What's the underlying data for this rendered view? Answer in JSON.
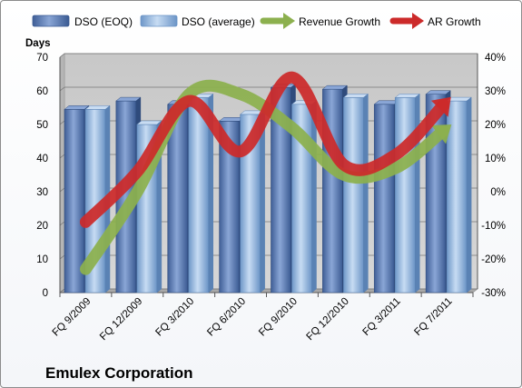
{
  "chart_data": {
    "type": "bar",
    "title": "Emulex Corporation",
    "ylabel": "Days",
    "ylim": [
      0,
      70
    ],
    "y2lim": [
      -0.3,
      0.4
    ],
    "yticks": [
      "0",
      "10",
      "20",
      "30",
      "40",
      "50",
      "60",
      "70"
    ],
    "y2ticks": [
      "-30%",
      "-20%",
      "-10%",
      "0%",
      "10%",
      "20%",
      "30%",
      "40%"
    ],
    "categories": [
      "FQ 9/2009",
      "FQ 12/2009",
      "FQ 3/2010",
      "FQ 6/2010",
      "FQ 9/2010",
      "FQ 12/2010",
      "FQ 3/2011",
      "FQ 7/2011"
    ],
    "grid": true,
    "legend_position": "top",
    "series": [
      {
        "name": "DSO (EOQ)",
        "kind": "bar",
        "axis": "left",
        "color": "#5b7bb4",
        "values": [
          54.5,
          57,
          56,
          51,
          61,
          60.5,
          56,
          59
        ]
      },
      {
        "name": "DSO (average)",
        "kind": "bar",
        "axis": "left",
        "color": "#8fb3dc",
        "values": [
          54.5,
          50,
          58,
          53,
          56,
          58,
          58,
          57
        ]
      },
      {
        "name": "Revenue Growth",
        "kind": "line",
        "axis": "right",
        "color": "#8cb04e",
        "values": [
          -0.23,
          0.0,
          0.29,
          0.29,
          0.19,
          0.05,
          0.07,
          0.19
        ]
      },
      {
        "name": "AR Growth",
        "kind": "line",
        "axis": "right",
        "color": "#cc2a2a",
        "values": [
          -0.09,
          0.06,
          0.27,
          0.12,
          0.34,
          0.08,
          0.11,
          0.27
        ]
      }
    ]
  }
}
